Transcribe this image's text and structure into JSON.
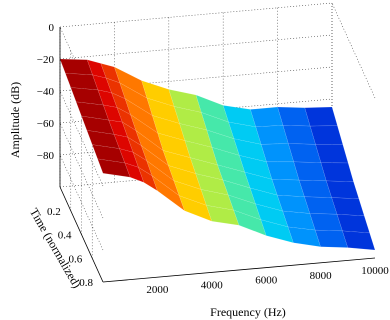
{
  "chart_data": {
    "type": "surface",
    "title": "",
    "xlabel": "Frequency (Hz)",
    "ylabel": "Time (normalized)",
    "zlabel": "Amplitude (dB)",
    "x_ticks": [
      "2000",
      "4000",
      "6000",
      "8000",
      "10000"
    ],
    "y_ticks": [
      "0.2",
      "0.4",
      "0.6",
      "0.8"
    ],
    "z_ticks": [
      "0",
      "−20",
      "−40",
      "−60",
      "−80"
    ],
    "xlim": [
      0,
      10000
    ],
    "ylim": [
      0,
      0.8
    ],
    "zlim": [
      -100,
      0
    ],
    "grid": true,
    "colormap": "jet",
    "series": [
      {
        "time": 0,
        "frequency_hz": [
          0,
          1000,
          1500,
          2000,
          3000,
          4000,
          5000,
          6000,
          7000,
          8000,
          9000,
          10000
        ],
        "amplitude_db": [
          -20,
          -22,
          -25,
          -28,
          -38,
          -45,
          -50,
          -58,
          -62,
          -62,
          -64,
          -65
        ]
      },
      {
        "time": 0.4,
        "frequency_hz": [
          0,
          1000,
          1500,
          2000,
          3000,
          4000,
          5000,
          6000,
          7000,
          8000,
          9000,
          10000
        ],
        "amplitude_db": [
          -26,
          -30,
          -32,
          -38,
          -52,
          -58,
          -64,
          -70,
          -76,
          -78,
          -80,
          -82
        ]
      },
      {
        "time": 0.8,
        "frequency_hz": [
          0,
          1000,
          1500,
          2000,
          3000,
          4000,
          5000,
          6000,
          7000,
          8000,
          9000,
          10000
        ],
        "amplitude_db": [
          -32,
          -36,
          -40,
          -46,
          -60,
          -68,
          -72,
          -80,
          -86,
          -90,
          -92,
          -95
        ]
      }
    ]
  }
}
